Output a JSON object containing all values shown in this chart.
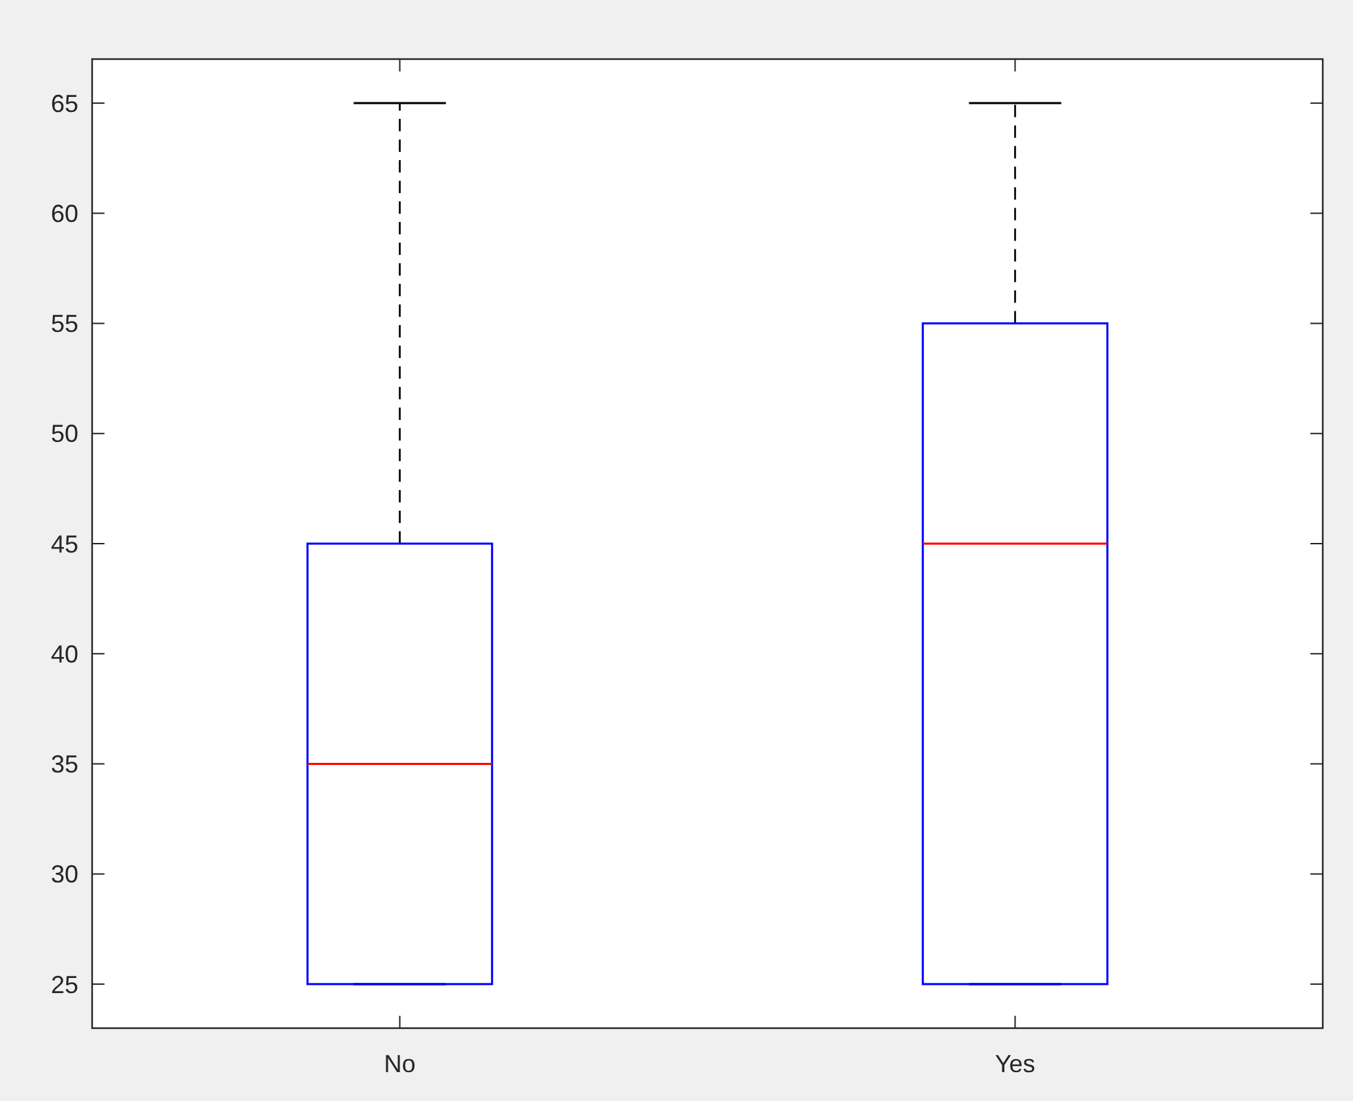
{
  "chart_data": {
    "type": "box",
    "categories": [
      "No",
      "Yes"
    ],
    "color": "#0000ff",
    "boxes": [
      {
        "low": 25,
        "q1": 25,
        "median": 35,
        "q3": 45,
        "high": 65
      },
      {
        "low": 25,
        "q1": 25,
        "median": 45,
        "q3": 55,
        "high": 65
      }
    ],
    "ylim": [
      23,
      67
    ],
    "yticks": [
      25,
      30,
      35,
      40,
      45,
      50,
      55,
      60,
      65
    ]
  }
}
